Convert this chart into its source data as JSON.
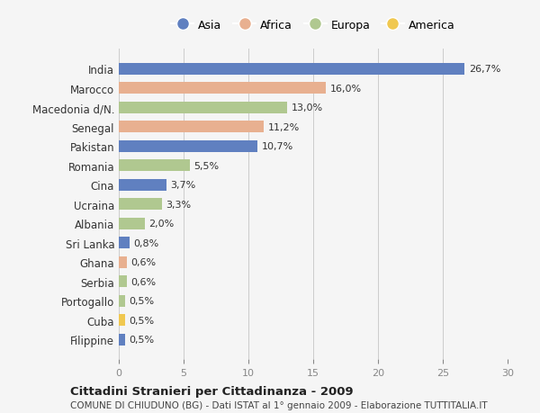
{
  "countries": [
    "India",
    "Marocco",
    "Macedonia d/N.",
    "Senegal",
    "Pakistan",
    "Romania",
    "Cina",
    "Ucraina",
    "Albania",
    "Sri Lanka",
    "Ghana",
    "Serbia",
    "Portogallo",
    "Cuba",
    "Filippine"
  ],
  "values": [
    26.7,
    16.0,
    13.0,
    11.2,
    10.7,
    5.5,
    3.7,
    3.3,
    2.0,
    0.8,
    0.6,
    0.6,
    0.5,
    0.5,
    0.5
  ],
  "labels": [
    "26,7%",
    "16,0%",
    "13,0%",
    "11,2%",
    "10,7%",
    "5,5%",
    "3,7%",
    "3,3%",
    "2,0%",
    "0,8%",
    "0,6%",
    "0,6%",
    "0,5%",
    "0,5%",
    "0,5%"
  ],
  "continents": [
    "Asia",
    "Africa",
    "Europa",
    "Africa",
    "Asia",
    "Europa",
    "Asia",
    "Europa",
    "Europa",
    "Asia",
    "Africa",
    "Europa",
    "Europa",
    "America",
    "Asia"
  ],
  "colors": {
    "Asia": "#6080c0",
    "Africa": "#e8b090",
    "Europa": "#b0c890",
    "America": "#f0c850"
  },
  "xlim": [
    0,
    30
  ],
  "xticks": [
    0,
    5,
    10,
    15,
    20,
    25,
    30
  ],
  "title": "Cittadini Stranieri per Cittadinanza - 2009",
  "subtitle": "COMUNE DI CHIUDUNO (BG) - Dati ISTAT al 1° gennaio 2009 - Elaborazione TUTTITALIA.IT",
  "background_color": "#f5f5f5",
  "bar_height": 0.6,
  "grid_color": "#cccccc",
  "legend_order": [
    "Asia",
    "Africa",
    "Europa",
    "America"
  ]
}
